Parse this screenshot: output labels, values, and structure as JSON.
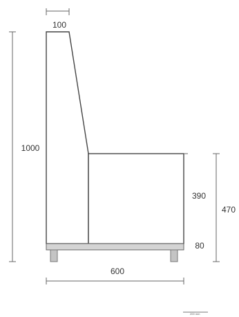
{
  "drawing": {
    "dimensions": {
      "back_width": "100",
      "total_height": "1000",
      "seat_to_base": "390",
      "seat_height": "470",
      "base_height": "80",
      "depth": "600"
    },
    "scale_label": "200 mm",
    "colors": {
      "line": "#444444",
      "base_fill": "#d4d4d4",
      "leg_fill": "#c4c4c4",
      "dim_line": "#666666",
      "text": "#333333"
    }
  }
}
